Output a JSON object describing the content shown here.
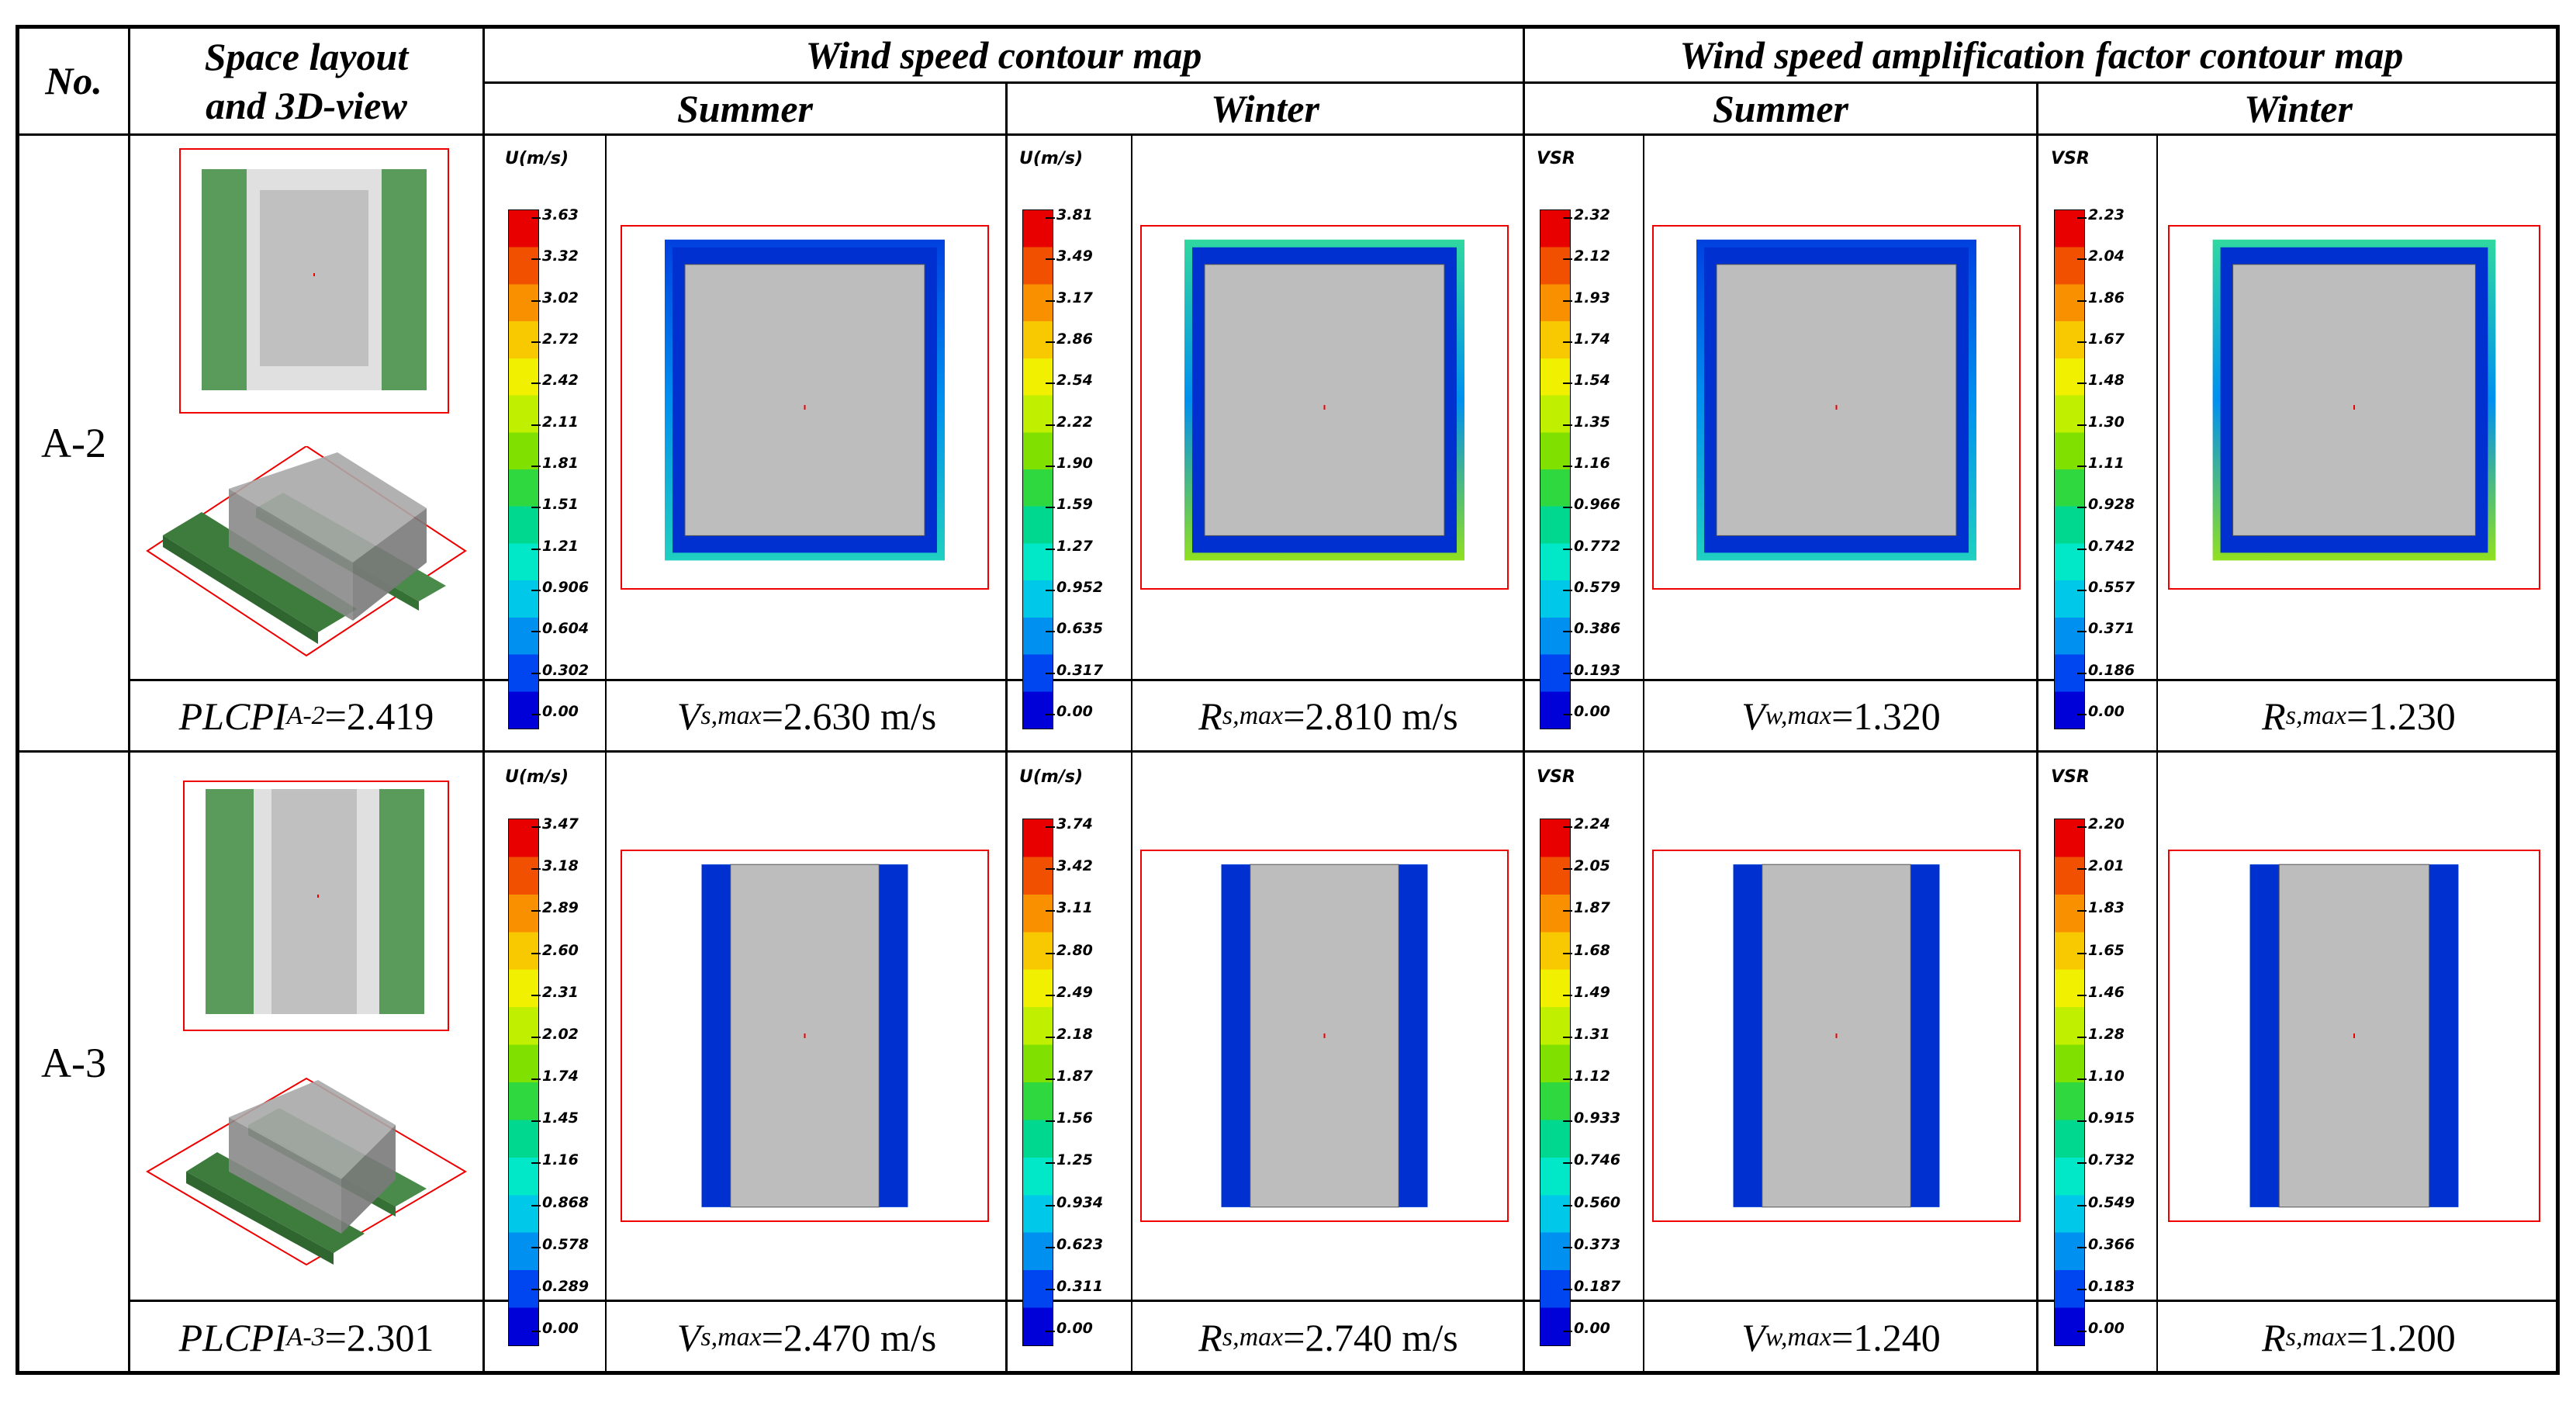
{
  "header": {
    "col_no": "No.",
    "col_layout_line1": "Space layout",
    "col_layout_line2": "and 3D-view",
    "group_speed": "Wind speed contour map",
    "group_amp": "Wind speed amplification factor contour map",
    "summer": "Summer",
    "winter": "Winter"
  },
  "colorbar_colors": [
    "#0000d8",
    "#0046f0",
    "#0090f0",
    "#00c8e8",
    "#00e8c8",
    "#00d890",
    "#30d840",
    "#80e000",
    "#c0f000",
    "#f0f000",
    "#f8c800",
    "#f89000",
    "#f05000",
    "#e80000"
  ],
  "rows": [
    {
      "label": "A-2",
      "plcpi_prefix": "PLCPI",
      "plcpi_sub": "A-2",
      "plcpi_value": "=2.419",
      "speed_summer": {
        "title": "U(m/s)",
        "ticks": [
          "3.63",
          "3.32",
          "3.02",
          "2.72",
          "2.42",
          "2.11",
          "1.81",
          "1.51",
          "1.21",
          "0.906",
          "0.604",
          "0.302",
          "0.00"
        ],
        "prefix": "V",
        "sub": "s,max",
        "value": "=2.630 m/s"
      },
      "speed_winter": {
        "title": "U(m/s)",
        "ticks": [
          "3.81",
          "3.49",
          "3.17",
          "2.86",
          "2.54",
          "2.22",
          "1.90",
          "1.59",
          "1.27",
          "0.952",
          "0.635",
          "0.317",
          "0.00"
        ],
        "prefix": "R",
        "sub": "s,max",
        "value": "=2.810 m/s"
      },
      "amp_summer": {
        "title": "VSR",
        "ticks": [
          "2.32",
          "2.12",
          "1.93",
          "1.74",
          "1.54",
          "1.35",
          "1.16",
          "0.966",
          "0.772",
          "0.579",
          "0.386",
          "0.193",
          "0.00"
        ],
        "prefix": "V",
        "sub": "w,max",
        "value": "=1.320"
      },
      "amp_winter": {
        "title": "VSR",
        "ticks": [
          "2.23",
          "2.04",
          "1.86",
          "1.67",
          "1.48",
          "1.30",
          "1.11",
          "0.928",
          "0.742",
          "0.557",
          "0.371",
          "0.186",
          "0.00"
        ],
        "prefix": "R",
        "sub": "s,max",
        "value": "=1.230"
      }
    },
    {
      "label": "A-3",
      "plcpi_prefix": "PLCPI",
      "plcpi_sub": "A-3",
      "plcpi_value": "=2.301",
      "speed_summer": {
        "title": "U(m/s)",
        "ticks": [
          "3.47",
          "3.18",
          "2.89",
          "2.60",
          "2.31",
          "2.02",
          "1.74",
          "1.45",
          "1.16",
          "0.868",
          "0.578",
          "0.289",
          "0.00"
        ],
        "prefix": "V",
        "sub": "s,max",
        "value": "=2.470 m/s"
      },
      "speed_winter": {
        "title": "U(m/s)",
        "ticks": [
          "3.74",
          "3.42",
          "3.11",
          "2.80",
          "2.49",
          "2.18",
          "1.87",
          "1.56",
          "1.25",
          "0.934",
          "0.623",
          "0.311",
          "0.00"
        ],
        "prefix": "R",
        "sub": "s,max",
        "value": "=2.740 m/s"
      },
      "amp_summer": {
        "title": "VSR",
        "ticks": [
          "2.24",
          "2.05",
          "1.87",
          "1.68",
          "1.49",
          "1.31",
          "1.12",
          "0.933",
          "0.746",
          "0.560",
          "0.373",
          "0.187",
          "0.00"
        ],
        "prefix": "V",
        "sub": "w,max",
        "value": "=1.240"
      },
      "amp_winter": {
        "title": "VSR",
        "ticks": [
          "2.20",
          "2.01",
          "1.83",
          "1.65",
          "1.46",
          "1.28",
          "1.10",
          "0.915",
          "0.732",
          "0.549",
          "0.366",
          "0.183",
          "0.00"
        ],
        "prefix": "R",
        "sub": "s,max",
        "value": "=1.200"
      }
    }
  ]
}
